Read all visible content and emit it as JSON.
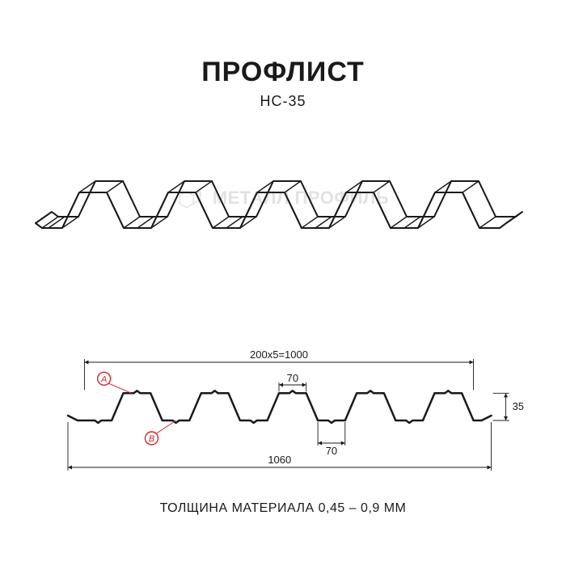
{
  "title": "ПРОФЛИСТ",
  "subtitle": "НС-35",
  "watermark_text": "МЕТАЛЛ ПРОФИЛЬ",
  "footer": "ТОЛЩИНА МАТЕРИАЛА 0,45 – 0,9 ММ",
  "colors": {
    "background": "#ffffff",
    "text": "#1a1a1a",
    "stroke": "#1a1a1a",
    "dim_line": "#1a1a1a",
    "marker_fill": "#ffffff",
    "marker_stroke": "#d22",
    "marker_text": "#d22",
    "watermark": "#888888"
  },
  "isometric": {
    "pitch_count": 5,
    "pitch_width": 120,
    "depth_dx": 20,
    "depth_dy": 14,
    "stroke_width": 2
  },
  "section": {
    "type": "profile",
    "pitch_formula": "200x5=1000",
    "pitch_count": 5,
    "top_flat_mm": 70,
    "bottom_flat_mm": 70,
    "height_mm": 35,
    "overall_width_mm": 1060,
    "markers": [
      {
        "id": "A",
        "side": "top"
      },
      {
        "id": "B",
        "side": "bottom"
      }
    ],
    "stroke_width": 2.5,
    "dim_stroke_width": 0.9,
    "dim_fontsize": 13,
    "marker_radius": 8,
    "marker_fontsize": 11
  }
}
